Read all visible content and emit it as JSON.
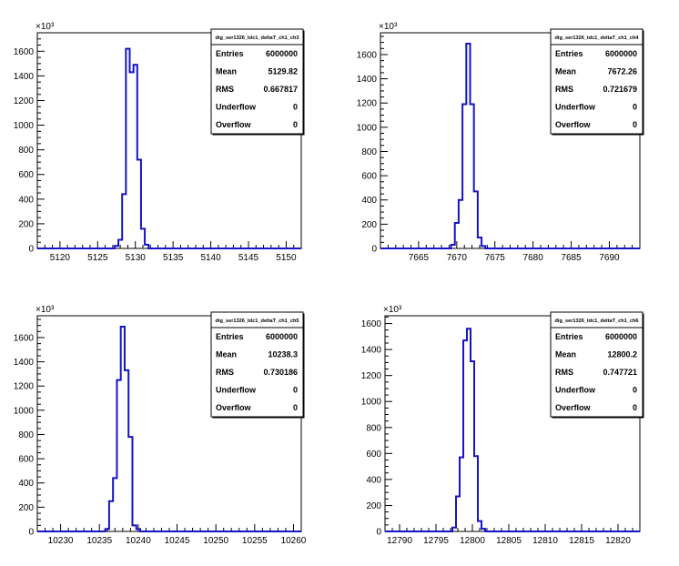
{
  "chart_data": [
    {
      "type": "histogram",
      "stats_title": "dig_ser1326_tdc1_deltaT_ch1_ch3",
      "stats": [
        {
          "label": "Entries",
          "value": "6000000"
        },
        {
          "label": "Mean",
          "value": "5129.82"
        },
        {
          "label": "RMS",
          "value": "0.667817"
        },
        {
          "label": "Underflow",
          "value": "0"
        },
        {
          "label": "Overflow",
          "value": "0"
        }
      ],
      "y_multiplier": "×10³",
      "xlim": [
        5117,
        5152
      ],
      "ylim": [
        0,
        1750
      ],
      "x_ticks": [
        "5120",
        "5125",
        "5130",
        "5135",
        "5140",
        "5145",
        "5150"
      ],
      "y_ticks": [
        "0",
        "200",
        "400",
        "600",
        "800",
        "1000",
        "1200",
        "1400",
        "1600"
      ],
      "bin_width": 0.5,
      "bins": [
        {
          "x": 5127.5,
          "y": 20
        },
        {
          "x": 5128.0,
          "y": 70
        },
        {
          "x": 5128.5,
          "y": 440
        },
        {
          "x": 5129.0,
          "y": 1620
        },
        {
          "x": 5129.5,
          "y": 1430
        },
        {
          "x": 5130.0,
          "y": 1490
        },
        {
          "x": 5130.5,
          "y": 720
        },
        {
          "x": 5131.0,
          "y": 160
        },
        {
          "x": 5131.5,
          "y": 30
        }
      ]
    },
    {
      "type": "histogram",
      "stats_title": "dig_ser1326_tdc1_deltaT_ch1_ch4",
      "stats": [
        {
          "label": "Entries",
          "value": "6000000"
        },
        {
          "label": "Mean",
          "value": "7672.26"
        },
        {
          "label": "RMS",
          "value": "0.721679"
        },
        {
          "label": "Underflow",
          "value": "0"
        },
        {
          "label": "Overflow",
          "value": "0"
        }
      ],
      "y_multiplier": "×10³",
      "xlim": [
        7660,
        7694
      ],
      "ylim": [
        0,
        1780
      ],
      "x_ticks": [
        "7665",
        "7670",
        "7675",
        "7680",
        "7685",
        "7690"
      ],
      "y_ticks": [
        "0",
        "200",
        "400",
        "600",
        "800",
        "1000",
        "1200",
        "1400",
        "1600"
      ],
      "bin_width": 0.5,
      "bins": [
        {
          "x": 7669.5,
          "y": 30
        },
        {
          "x": 7670.0,
          "y": 210
        },
        {
          "x": 7670.5,
          "y": 400
        },
        {
          "x": 7671.0,
          "y": 1190
        },
        {
          "x": 7671.5,
          "y": 1690
        },
        {
          "x": 7672.0,
          "y": 1190
        },
        {
          "x": 7672.5,
          "y": 470
        },
        {
          "x": 7673.0,
          "y": 90
        },
        {
          "x": 7673.5,
          "y": 20
        }
      ]
    },
    {
      "type": "histogram",
      "stats_title": "dig_ser1326_tdc1_deltaT_ch1_ch5",
      "stats": [
        {
          "label": "Entries",
          "value": "6000000"
        },
        {
          "label": "Mean",
          "value": "10238.3"
        },
        {
          "label": "RMS",
          "value": "0.730186"
        },
        {
          "label": "Underflow",
          "value": "0"
        },
        {
          "label": "Overflow",
          "value": "0"
        }
      ],
      "y_multiplier": "×10³",
      "xlim": [
        10227,
        10261
      ],
      "ylim": [
        0,
        1780
      ],
      "x_ticks": [
        "10230",
        "10235",
        "10240",
        "10245",
        "10250",
        "10255",
        "10260"
      ],
      "y_ticks": [
        "0",
        "200",
        "400",
        "600",
        "800",
        "1000",
        "1200",
        "1400",
        "1600"
      ],
      "bin_width": 0.5,
      "bins": [
        {
          "x": 10236.0,
          "y": 20
        },
        {
          "x": 10236.5,
          "y": 250
        },
        {
          "x": 10237.0,
          "y": 440
        },
        {
          "x": 10237.5,
          "y": 1250
        },
        {
          "x": 10238.0,
          "y": 1690
        },
        {
          "x": 10238.5,
          "y": 1330
        },
        {
          "x": 10239.0,
          "y": 780
        },
        {
          "x": 10239.5,
          "y": 50
        },
        {
          "x": 10240.0,
          "y": 20
        }
      ]
    },
    {
      "type": "histogram",
      "stats_title": "dig_ser1326_tdc1_deltaT_ch1_ch6",
      "stats": [
        {
          "label": "Entries",
          "value": "6000000"
        },
        {
          "label": "Mean",
          "value": "12800.2"
        },
        {
          "label": "RMS",
          "value": "0.747721"
        },
        {
          "label": "Underflow",
          "value": "0"
        },
        {
          "label": "Overflow",
          "value": "0"
        }
      ],
      "y_multiplier": "×10³",
      "xlim": [
        12788,
        12823
      ],
      "ylim": [
        0,
        1660
      ],
      "x_ticks": [
        "12790",
        "12795",
        "12800",
        "12805",
        "12810",
        "12815",
        "12820"
      ],
      "y_ticks": [
        "0",
        "200",
        "400",
        "600",
        "800",
        "1000",
        "1200",
        "1400",
        "1600"
      ],
      "bin_width": 0.5,
      "bins": [
        {
          "x": 12797.5,
          "y": 30
        },
        {
          "x": 12798.0,
          "y": 270
        },
        {
          "x": 12798.5,
          "y": 570
        },
        {
          "x": 12799.0,
          "y": 1470
        },
        {
          "x": 12799.5,
          "y": 1560
        },
        {
          "x": 12800.0,
          "y": 1310
        },
        {
          "x": 12800.5,
          "y": 580
        },
        {
          "x": 12801.0,
          "y": 80
        },
        {
          "x": 12801.5,
          "y": 20
        }
      ]
    }
  ],
  "colors": {
    "line": "#1414c8",
    "axis": "#000000",
    "background": "#ffffff"
  }
}
